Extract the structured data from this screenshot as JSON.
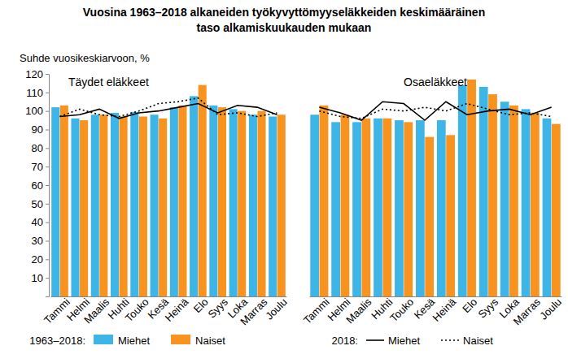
{
  "chart_data": {
    "type": "bar",
    "title": [
      "Vuosina 1963–2018 alkaneiden työkyvyttömyyseläkkeiden keskimääräinen",
      "taso alkamiskuukauden mukaan"
    ],
    "y_label": "Suhde vuosikeskiarvoon, %",
    "panels": [
      {
        "title": "Täydet eläkkeet"
      },
      {
        "title": "Osaeläkkeet"
      }
    ],
    "categories": [
      "Tammi",
      "Helmi",
      "Maalis",
      "Huhti",
      "Touko",
      "Kesä",
      "Heinä",
      "Elo",
      "Syys",
      "Loka",
      "Marras",
      "Joulu",
      "Tammi",
      "Helmi",
      "Maalis",
      "Huhti",
      "Touko",
      "Kesä",
      "Heinä",
      "Elo",
      "Syys",
      "Loka",
      "Marras",
      "Joulu"
    ],
    "series": [
      {
        "name": "Miehet",
        "group": "1963–2018:",
        "type": "bar",
        "color": "#3db5e6",
        "values": [
          102,
          96,
          98,
          99,
          99.5,
          98,
          102,
          108,
          103,
          101,
          98,
          97,
          98,
          94,
          94,
          96,
          95,
          95,
          95,
          114,
          113,
          105,
          101,
          96
        ]
      },
      {
        "name": "Naiset",
        "group": "1963–2018:",
        "type": "bar",
        "color": "#f7931e",
        "values": [
          103,
          95,
          98,
          97,
          97,
          96,
          103,
          114,
          102,
          100,
          100,
          98,
          103,
          98,
          96,
          96,
          94,
          86,
          87,
          117,
          109,
          103,
          99,
          93
        ]
      },
      {
        "name": "Miehet",
        "group": "2018:",
        "type": "line",
        "line_style": "solid",
        "color": "#000000",
        "values": [
          97,
          98,
          101,
          96,
          99,
          100,
          102,
          104,
          99,
          103,
          102,
          98,
          102,
          99,
          95,
          105,
          104,
          95,
          105,
          98,
          100,
          101,
          98,
          102
        ]
      },
      {
        "name": "Naiset",
        "group": "2018:",
        "type": "line",
        "line_style": "dotted",
        "color": "#000000",
        "values": [
          97,
          101,
          98,
          97,
          100,
          104,
          105,
          107,
          98,
          99,
          97,
          99,
          100,
          97,
          96,
          101,
          100,
          102,
          100,
          104,
          101,
          98,
          99,
          97
        ]
      }
    ],
    "ylim": [
      0,
      120
    ],
    "yticks": [
      10,
      20,
      30,
      40,
      50,
      60,
      70,
      80,
      90,
      100,
      110,
      120
    ],
    "grid": false,
    "legend": "bottom"
  }
}
